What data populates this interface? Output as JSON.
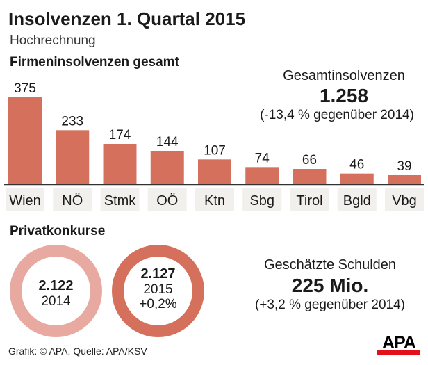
{
  "title": "Insolvenzen 1. Quartal 2015",
  "subtitle": "Hochrechnung",
  "firm_section": "Firmeninsolvenzen gesamt",
  "total": {
    "label": "Gesamtinsolvenzen",
    "value": "1.258",
    "change": "(-13,4 % gegenüber 2014)"
  },
  "private_section": "Privatkonkurse",
  "private": [
    {
      "value": "2.122",
      "year": "2014",
      "color": "#e8aaa0"
    },
    {
      "value": "2.127",
      "year": "2015",
      "change": "+0,2%",
      "color": "#d4705c"
    }
  ],
  "debt": {
    "label": "Geschätzte Schulden",
    "value": "225 Mio.",
    "change": "(+3,2 % gegenüber 2014)"
  },
  "source": "Grafik: © APA, Quelle: APA/KSV",
  "logo": "APA",
  "chart_data": {
    "type": "bar",
    "title": "Firmeninsolvenzen gesamt",
    "categories": [
      "Wien",
      "NÖ",
      "Stmk",
      "OÖ",
      "Ktn",
      "Sbg",
      "Tirol",
      "Bgld",
      "Vbg"
    ],
    "values": [
      375,
      233,
      174,
      144,
      107,
      74,
      66,
      46,
      39
    ],
    "ylim": [
      0,
      375
    ],
    "grid": false,
    "bar_color": "#d4705c",
    "label_bg": "#f2f0ec"
  }
}
